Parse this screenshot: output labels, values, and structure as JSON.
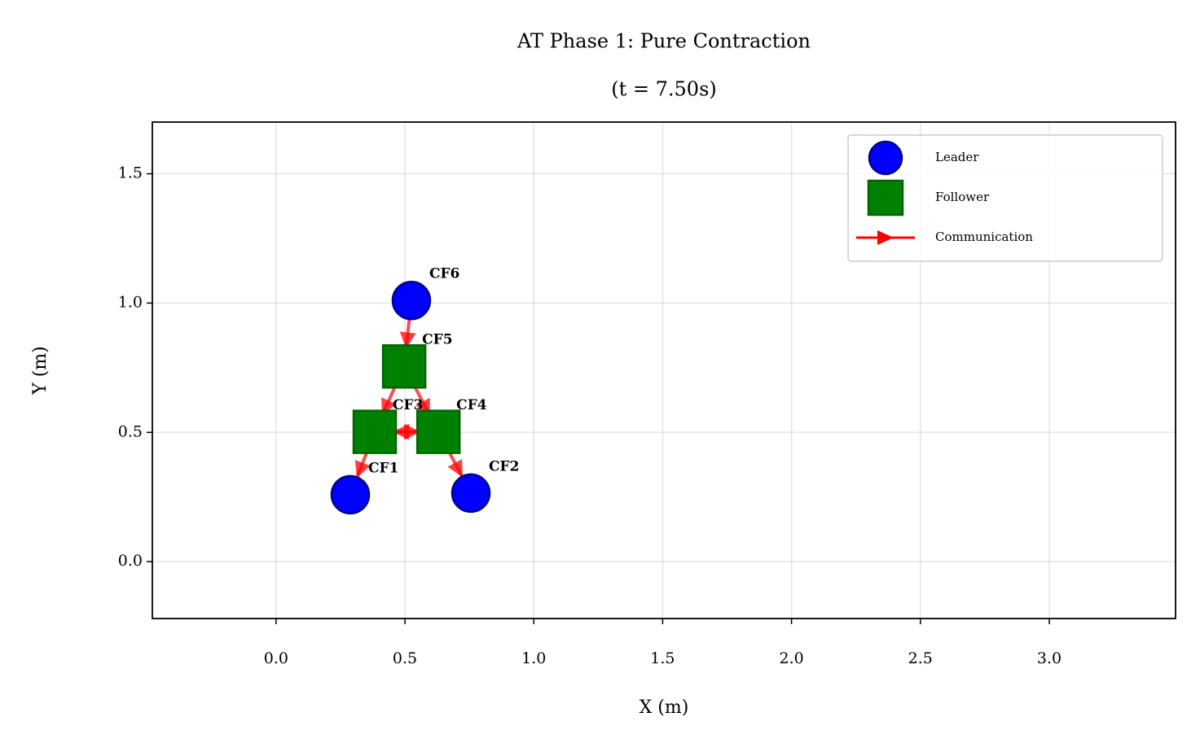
{
  "chart_data": {
    "type": "scatter",
    "title": "AT Phase 1: Pure Contraction",
    "subtitle": "(t = 7.50s)",
    "xlabel": "X (m)",
    "ylabel": "Y (m)",
    "xlim": [
      -0.48,
      3.49
    ],
    "ylim": [
      -0.22,
      1.7
    ],
    "xticks": [
      {
        "value": 0,
        "label": "0.0"
      },
      0.5,
      {
        "value": 1,
        "label": "1.0"
      },
      1.5,
      {
        "value": 2,
        "label": "2.0"
      },
      2.5,
      {
        "value": 3,
        "label": "3.0"
      }
    ],
    "yticks": [
      {
        "value": 0,
        "label": "0.0"
      },
      0.5,
      {
        "value": 1,
        "label": "1.0"
      },
      1.5
    ],
    "grid": true,
    "legend": "upper right",
    "series": [
      {
        "name": "Leader",
        "color": "#0000ff",
        "edge_color": "#00008b",
        "marker": "circle",
        "labels": [
          "CF1",
          "CF2",
          "CF6"
        ],
        "x": [
          0.288,
          0.756,
          0.525
        ],
        "y": [
          0.259,
          0.265,
          1.01
        ]
      },
      {
        "name": "Follower",
        "color": "#008000",
        "edge_color": "#006400",
        "marker": "square",
        "labels": [
          "CF3",
          "CF4",
          "CF5"
        ],
        "x": [
          0.383,
          0.63,
          0.497
        ],
        "y": [
          0.502,
          0.502,
          0.755
        ]
      }
    ],
    "edges": {
      "name": "Communication",
      "color": "#ff0000",
      "links": [
        [
          "CF6",
          "CF5"
        ],
        [
          "CF5",
          "CF3"
        ],
        [
          "CF5",
          "CF4"
        ],
        [
          "CF3",
          "CF4"
        ],
        [
          "CF4",
          "CF3"
        ],
        [
          "CF3",
          "CF1"
        ],
        [
          "CF4",
          "CF2"
        ]
      ]
    }
  }
}
